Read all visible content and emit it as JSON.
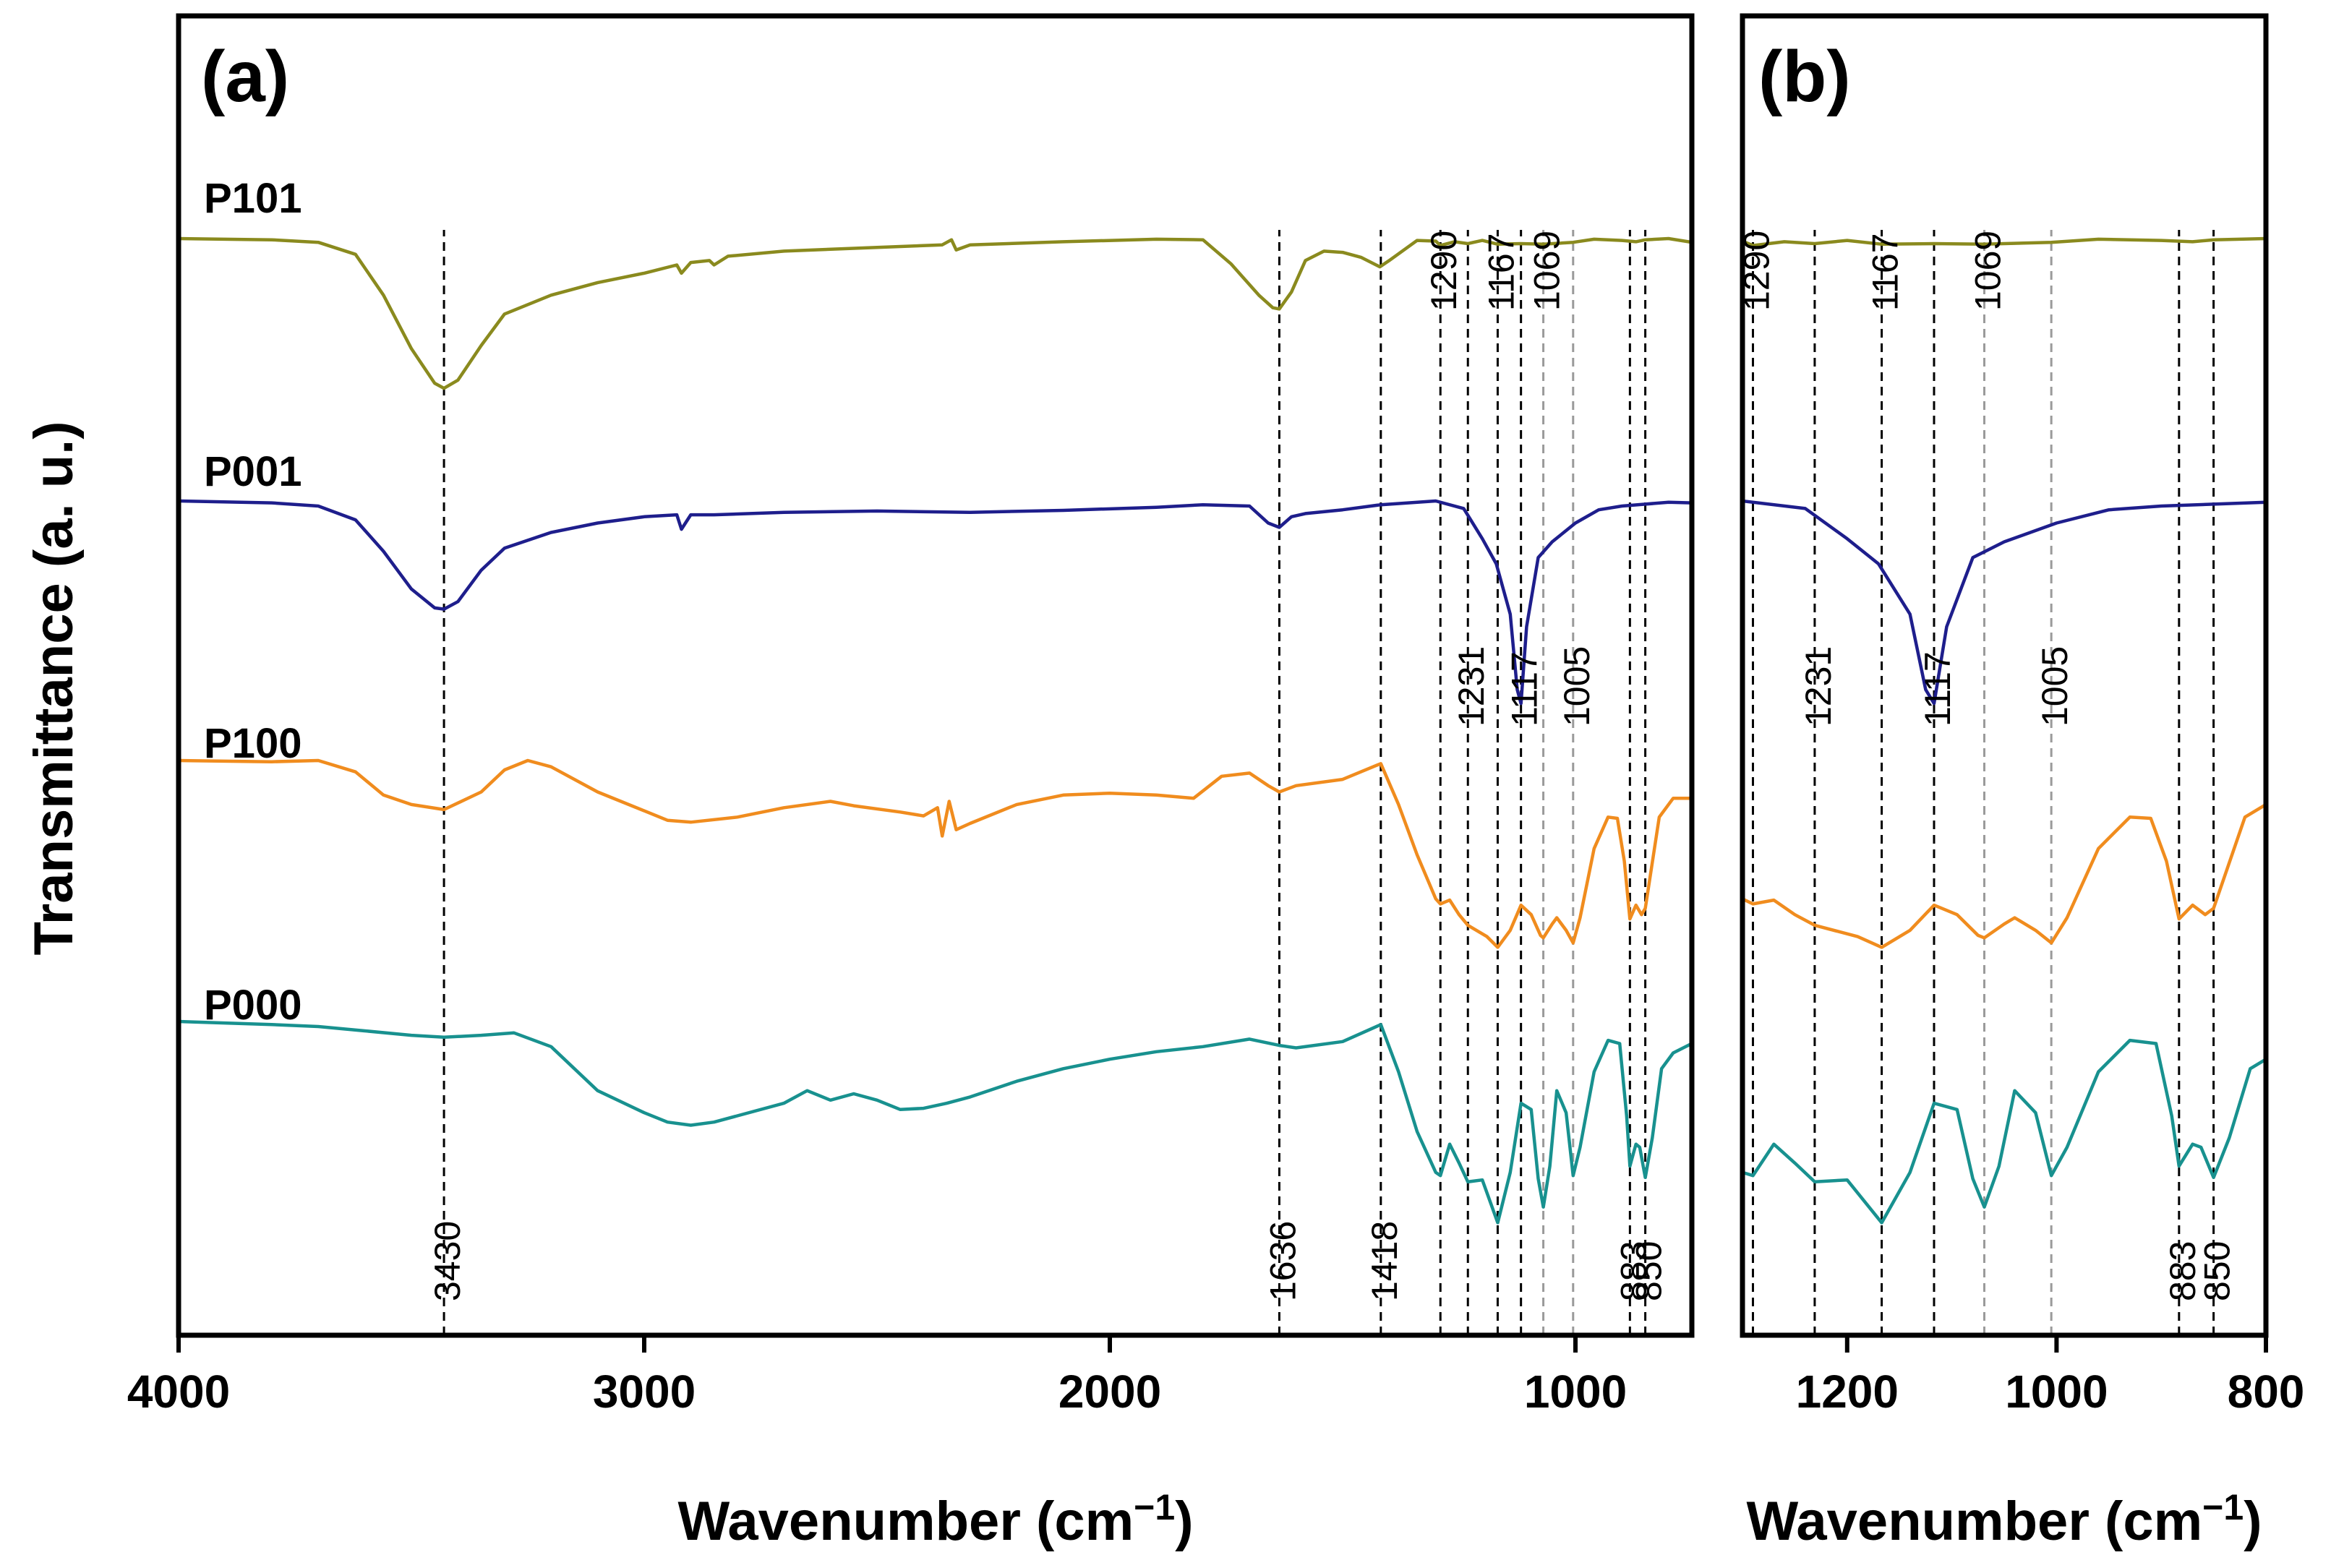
{
  "chart_data": {
    "type": "line",
    "ylabel": "Transmittance (a. u.)",
    "panels": [
      {
        "id": "a",
        "label": "(a)",
        "xlabel": "Wavenumber (cm",
        "xlabel_sup": "−1",
        "xlabel_end": ")",
        "xlim": [
          4000,
          750
        ],
        "xticks": [
          4000,
          3000,
          2000,
          1000
        ],
        "xtick_labels": [
          "4000",
          "3000",
          "2000",
          "1000"
        ],
        "peak_lines": [
          3430,
          1636,
          1418,
          1290,
          1231,
          1167,
          1117,
          1069,
          1005,
          883,
          850
        ],
        "peak_labels": [
          {
            "text": "3430",
            "x": 3430,
            "row": "bottom"
          },
          {
            "text": "1636",
            "x": 1636,
            "row": "bottom"
          },
          {
            "text": "1418",
            "x": 1418,
            "row": "bottom"
          },
          {
            "text": "883",
            "x": 883,
            "row": "bottom"
          },
          {
            "text": "850",
            "x": 850,
            "row": "bottom"
          },
          {
            "text": "1290",
            "x": 1290,
            "row": "top"
          },
          {
            "text": "1167",
            "x": 1167,
            "row": "top"
          },
          {
            "text": "1069",
            "x": 1069,
            "row": "top"
          },
          {
            "text": "1231",
            "x": 1231,
            "row": "mid"
          },
          {
            "text": "1117",
            "x": 1117,
            "row": "mid"
          },
          {
            "text": "1005",
            "x": 1005,
            "row": "mid"
          }
        ],
        "series_labels": [
          "P101",
          "P001",
          "P100",
          "P000"
        ]
      },
      {
        "id": "b",
        "label": "(b)",
        "xlabel": "Wavenumber (cm",
        "xlabel_sup": "−1",
        "xlabel_end": ")",
        "xlim": [
          1300,
          800
        ],
        "xticks": [
          1200,
          1000,
          800
        ],
        "xtick_labels": [
          "1200",
          "1000",
          "800"
        ],
        "peak_lines": [
          1290,
          1231,
          1167,
          1117,
          1069,
          1005,
          883,
          850
        ],
        "peak_labels": [
          {
            "text": "1290",
            "x": 1290,
            "row": "top"
          },
          {
            "text": "1167",
            "x": 1167,
            "row": "top"
          },
          {
            "text": "1069",
            "x": 1069,
            "row": "top"
          },
          {
            "text": "1231",
            "x": 1231,
            "row": "mid"
          },
          {
            "text": "1117",
            "x": 1117,
            "row": "mid"
          },
          {
            "text": "1005",
            "x": 1005,
            "row": "mid"
          },
          {
            "text": "883",
            "x": 883,
            "row": "bottom"
          },
          {
            "text": "850",
            "x": 850,
            "row": "bottom"
          }
        ]
      }
    ],
    "series": [
      {
        "name": "P101",
        "color": "#8a8a1e",
        "baseline": 0,
        "points": [
          [
            4000,
            0
          ],
          [
            3800,
            -2
          ],
          [
            3700,
            -6
          ],
          [
            3620,
            -25
          ],
          [
            3560,
            -90
          ],
          [
            3500,
            -175
          ],
          [
            3450,
            -230
          ],
          [
            3430,
            -238
          ],
          [
            3400,
            -225
          ],
          [
            3350,
            -170
          ],
          [
            3300,
            -120
          ],
          [
            3200,
            -90
          ],
          [
            3100,
            -70
          ],
          [
            3000,
            -55
          ],
          [
            2930,
            -42
          ],
          [
            2920,
            -55
          ],
          [
            2900,
            -38
          ],
          [
            2860,
            -35
          ],
          [
            2850,
            -42
          ],
          [
            2820,
            -28
          ],
          [
            2700,
            -20
          ],
          [
            2500,
            -14
          ],
          [
            2360,
            -10
          ],
          [
            2340,
            -2
          ],
          [
            2330,
            -18
          ],
          [
            2300,
            -10
          ],
          [
            2100,
            -5
          ],
          [
            1900,
            -1
          ],
          [
            1800,
            -2
          ],
          [
            1740,
            -40
          ],
          [
            1680,
            -90
          ],
          [
            1650,
            -110
          ],
          [
            1636,
            -112
          ],
          [
            1610,
            -85
          ],
          [
            1580,
            -35
          ],
          [
            1540,
            -20
          ],
          [
            1500,
            -22
          ],
          [
            1460,
            -30
          ],
          [
            1420,
            -45
          ],
          [
            1400,
            -35
          ],
          [
            1340,
            -3
          ],
          [
            1300,
            -4
          ],
          [
            1290,
            -11
          ],
          [
            1260,
            -5
          ],
          [
            1231,
            -8
          ],
          [
            1200,
            -3
          ],
          [
            1167,
            -9
          ],
          [
            1117,
            -8
          ],
          [
            1069,
            -9
          ],
          [
            1005,
            -6
          ],
          [
            960,
            -1
          ],
          [
            900,
            -3
          ],
          [
            870,
            -5
          ],
          [
            850,
            -2
          ],
          [
            800,
            0
          ],
          [
            750,
            -6
          ]
        ]
      },
      {
        "name": "P001",
        "color": "#1e1e8c",
        "baseline": 363,
        "points": [
          [
            4000,
            0
          ],
          [
            3800,
            -3
          ],
          [
            3700,
            -8
          ],
          [
            3620,
            -30
          ],
          [
            3560,
            -80
          ],
          [
            3500,
            -140
          ],
          [
            3450,
            -170
          ],
          [
            3430,
            -172
          ],
          [
            3400,
            -160
          ],
          [
            3350,
            -110
          ],
          [
            3300,
            -75
          ],
          [
            3200,
            -50
          ],
          [
            3100,
            -35
          ],
          [
            3000,
            -25
          ],
          [
            2930,
            -22
          ],
          [
            2920,
            -45
          ],
          [
            2900,
            -22
          ],
          [
            2850,
            -22
          ],
          [
            2700,
            -18
          ],
          [
            2500,
            -16
          ],
          [
            2300,
            -18
          ],
          [
            2100,
            -15
          ],
          [
            1900,
            -10
          ],
          [
            1800,
            -6
          ],
          [
            1700,
            -8
          ],
          [
            1660,
            -35
          ],
          [
            1636,
            -42
          ],
          [
            1610,
            -25
          ],
          [
            1580,
            -20
          ],
          [
            1500,
            -14
          ],
          [
            1418,
            -6
          ],
          [
            1300,
            0
          ],
          [
            1240,
            -12
          ],
          [
            1200,
            -60
          ],
          [
            1170,
            -100
          ],
          [
            1140,
            -180
          ],
          [
            1125,
            -300
          ],
          [
            1117,
            -322
          ],
          [
            1105,
            -200
          ],
          [
            1080,
            -90
          ],
          [
            1050,
            -65
          ],
          [
            1000,
            -35
          ],
          [
            950,
            -14
          ],
          [
            900,
            -8
          ],
          [
            850,
            -5
          ],
          [
            800,
            -2
          ],
          [
            750,
            -3
          ]
        ]
      },
      {
        "name": "P100",
        "color": "#f08c1e",
        "baseline": 722,
        "points": [
          [
            4000,
            0
          ],
          [
            3800,
            -2
          ],
          [
            3700,
            0
          ],
          [
            3620,
            -18
          ],
          [
            3560,
            -55
          ],
          [
            3500,
            -70
          ],
          [
            3430,
            -78
          ],
          [
            3350,
            -50
          ],
          [
            3300,
            -15
          ],
          [
            3250,
            0
          ],
          [
            3200,
            -10
          ],
          [
            3100,
            -50
          ],
          [
            3000,
            -80
          ],
          [
            2950,
            -95
          ],
          [
            2900,
            -98
          ],
          [
            2800,
            -90
          ],
          [
            2700,
            -75
          ],
          [
            2600,
            -65
          ],
          [
            2550,
            -72
          ],
          [
            2450,
            -82
          ],
          [
            2400,
            -88
          ],
          [
            2370,
            -75
          ],
          [
            2360,
            -120
          ],
          [
            2345,
            -65
          ],
          [
            2330,
            -110
          ],
          [
            2300,
            -100
          ],
          [
            2200,
            -70
          ],
          [
            2100,
            -55
          ],
          [
            2000,
            -52
          ],
          [
            1900,
            -55
          ],
          [
            1820,
            -60
          ],
          [
            1760,
            -25
          ],
          [
            1700,
            -20
          ],
          [
            1660,
            -40
          ],
          [
            1636,
            -50
          ],
          [
            1600,
            -40
          ],
          [
            1500,
            -30
          ],
          [
            1418,
            -5
          ],
          [
            1380,
            -70
          ],
          [
            1340,
            -150
          ],
          [
            1300,
            -220
          ],
          [
            1290,
            -228
          ],
          [
            1270,
            -222
          ],
          [
            1250,
            -245
          ],
          [
            1231,
            -262
          ],
          [
            1190,
            -280
          ],
          [
            1167,
            -297
          ],
          [
            1140,
            -270
          ],
          [
            1117,
            -230
          ],
          [
            1095,
            -245
          ],
          [
            1075,
            -278
          ],
          [
            1069,
            -282
          ],
          [
            1050,
            -260
          ],
          [
            1040,
            -250
          ],
          [
            1020,
            -270
          ],
          [
            1005,
            -290
          ],
          [
            990,
            -250
          ],
          [
            960,
            -140
          ],
          [
            930,
            -90
          ],
          [
            910,
            -92
          ],
          [
            895,
            -160
          ],
          [
            883,
            -252
          ],
          [
            870,
            -230
          ],
          [
            858,
            -245
          ],
          [
            850,
            -235
          ],
          [
            820,
            -90
          ],
          [
            790,
            -60
          ],
          [
            750,
            -60
          ]
        ]
      },
      {
        "name": "P000",
        "color": "#18918f",
        "baseline": 1083,
        "points": [
          [
            4000,
            0
          ],
          [
            3800,
            -5
          ],
          [
            3700,
            -8
          ],
          [
            3600,
            -15
          ],
          [
            3500,
            -22
          ],
          [
            3430,
            -25
          ],
          [
            3350,
            -22
          ],
          [
            3280,
            -18
          ],
          [
            3200,
            -40
          ],
          [
            3100,
            -110
          ],
          [
            3000,
            -145
          ],
          [
            2950,
            -160
          ],
          [
            2900,
            -165
          ],
          [
            2850,
            -160
          ],
          [
            2800,
            -150
          ],
          [
            2700,
            -130
          ],
          [
            2650,
            -110
          ],
          [
            2600,
            -125
          ],
          [
            2550,
            -115
          ],
          [
            2500,
            -125
          ],
          [
            2450,
            -140
          ],
          [
            2400,
            -138
          ],
          [
            2350,
            -130
          ],
          [
            2300,
            -120
          ],
          [
            2200,
            -95
          ],
          [
            2100,
            -75
          ],
          [
            2000,
            -60
          ],
          [
            1900,
            -48
          ],
          [
            1800,
            -40
          ],
          [
            1700,
            -28
          ],
          [
            1636,
            -38
          ],
          [
            1600,
            -42
          ],
          [
            1500,
            -32
          ],
          [
            1418,
            -5
          ],
          [
            1380,
            -80
          ],
          [
            1340,
            -175
          ],
          [
            1300,
            -240
          ],
          [
            1290,
            -245
          ],
          [
            1270,
            -195
          ],
          [
            1250,
            -225
          ],
          [
            1231,
            -255
          ],
          [
            1200,
            -252
          ],
          [
            1167,
            -320
          ],
          [
            1140,
            -240
          ],
          [
            1117,
            -130
          ],
          [
            1095,
            -140
          ],
          [
            1080,
            -250
          ],
          [
            1069,
            -295
          ],
          [
            1055,
            -230
          ],
          [
            1040,
            -110
          ],
          [
            1020,
            -145
          ],
          [
            1005,
            -245
          ],
          [
            990,
            -200
          ],
          [
            960,
            -80
          ],
          [
            930,
            -30
          ],
          [
            905,
            -35
          ],
          [
            890,
            -150
          ],
          [
            883,
            -230
          ],
          [
            870,
            -195
          ],
          [
            862,
            -200
          ],
          [
            850,
            -248
          ],
          [
            835,
            -185
          ],
          [
            815,
            -75
          ],
          [
            790,
            -50
          ],
          [
            750,
            -35
          ]
        ]
      }
    ],
    "annotations": [
      "(a)",
      "(b)",
      "P101",
      "P001",
      "P100",
      "P000"
    ]
  }
}
